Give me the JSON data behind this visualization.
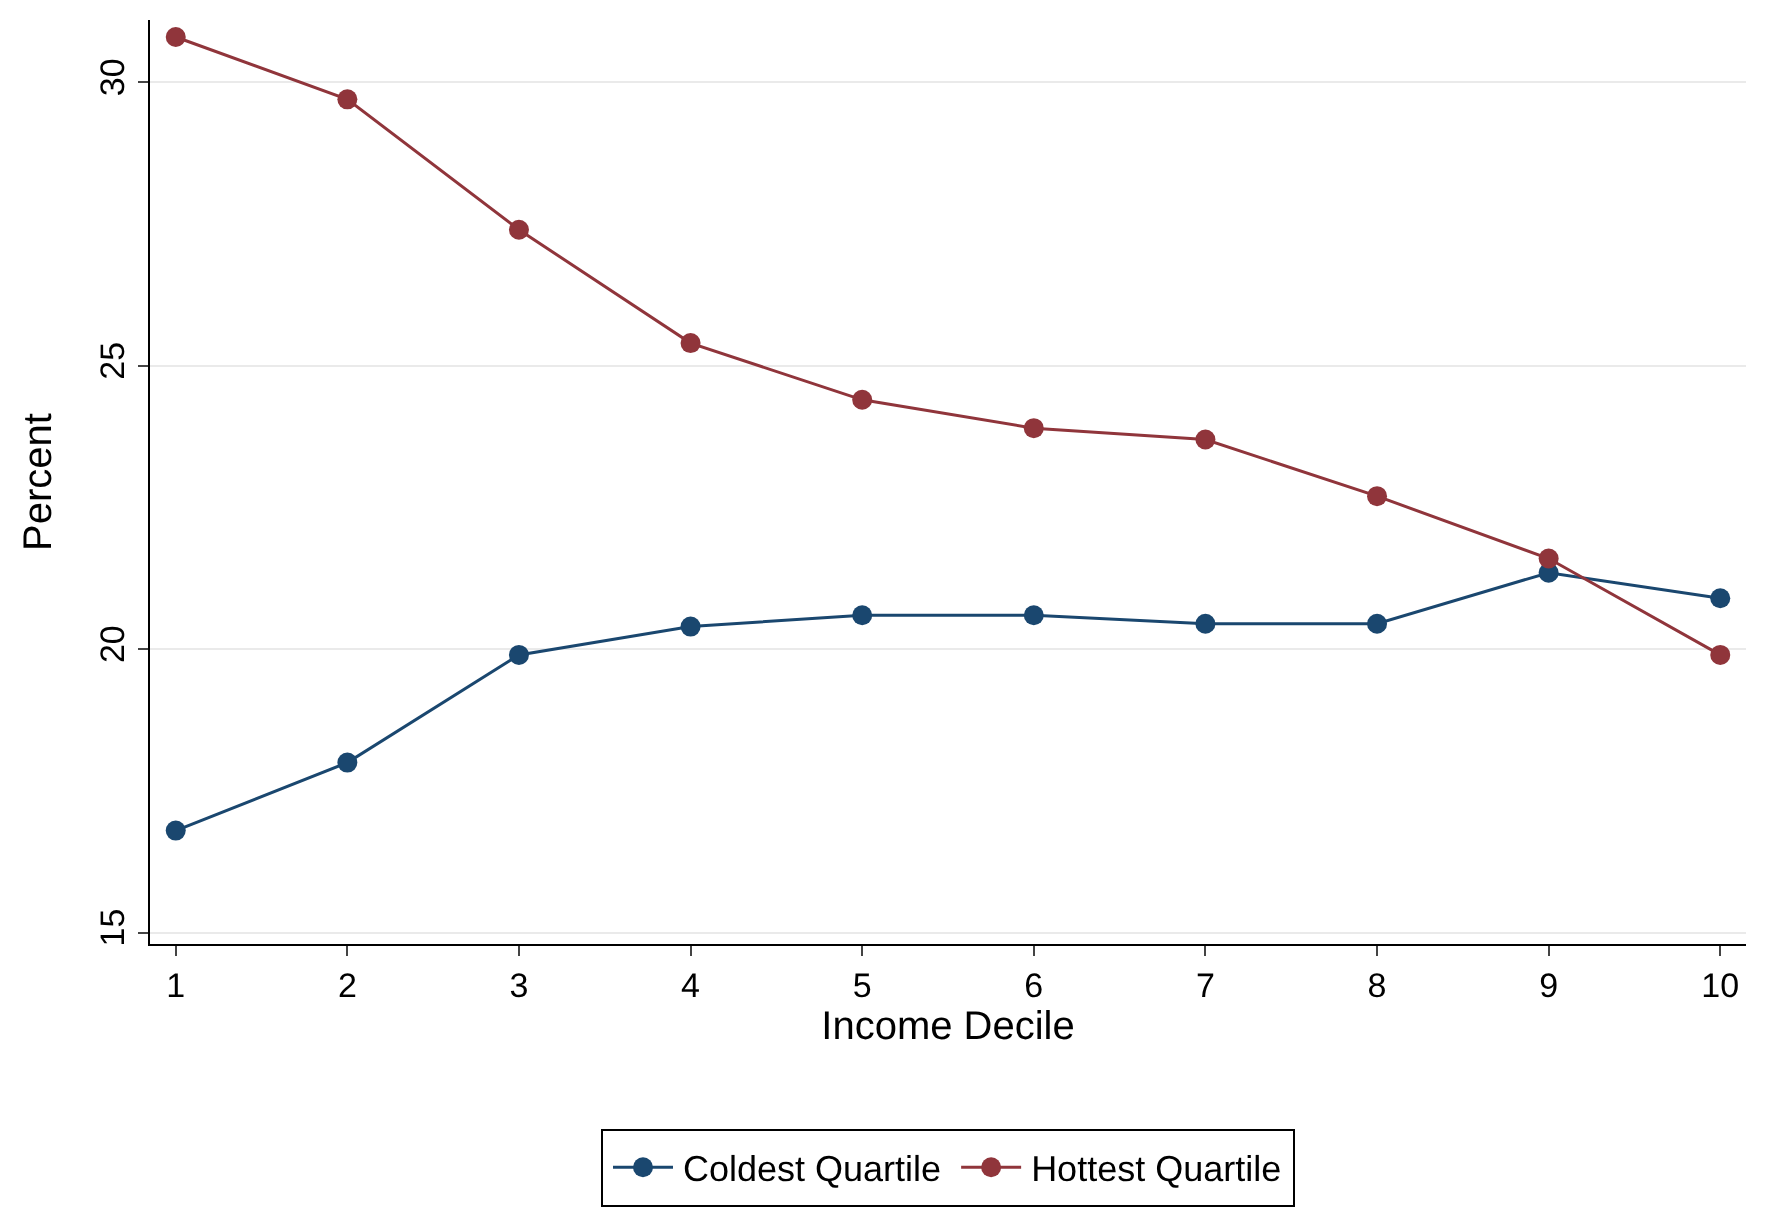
{
  "chart_data": {
    "type": "line",
    "xlabel": "Income Decile",
    "ylabel": "Percent",
    "x": [
      1,
      2,
      3,
      4,
      5,
      6,
      7,
      8,
      9,
      10
    ],
    "series": [
      {
        "name": "Coldest Quartile",
        "color": "#1a476f",
        "values": [
          16.8,
          18.0,
          19.9,
          20.4,
          20.6,
          20.6,
          20.45,
          20.45,
          21.35,
          20.9
        ]
      },
      {
        "name": "Hottest Quartile",
        "color": "#90353b",
        "values": [
          30.8,
          29.7,
          27.4,
          25.4,
          24.4,
          23.9,
          23.7,
          22.7,
          21.6,
          19.9
        ]
      }
    ],
    "xlim": [
      0.85,
      10.15
    ],
    "xticks": [
      1,
      2,
      3,
      4,
      5,
      6,
      7,
      8,
      9,
      10
    ],
    "ylim": [
      14.8,
      31.1
    ],
    "yticks": [
      15,
      20,
      25,
      30
    ],
    "grid": "y",
    "legend": "bottom",
    "marker": "circle",
    "line_style": "solid"
  }
}
